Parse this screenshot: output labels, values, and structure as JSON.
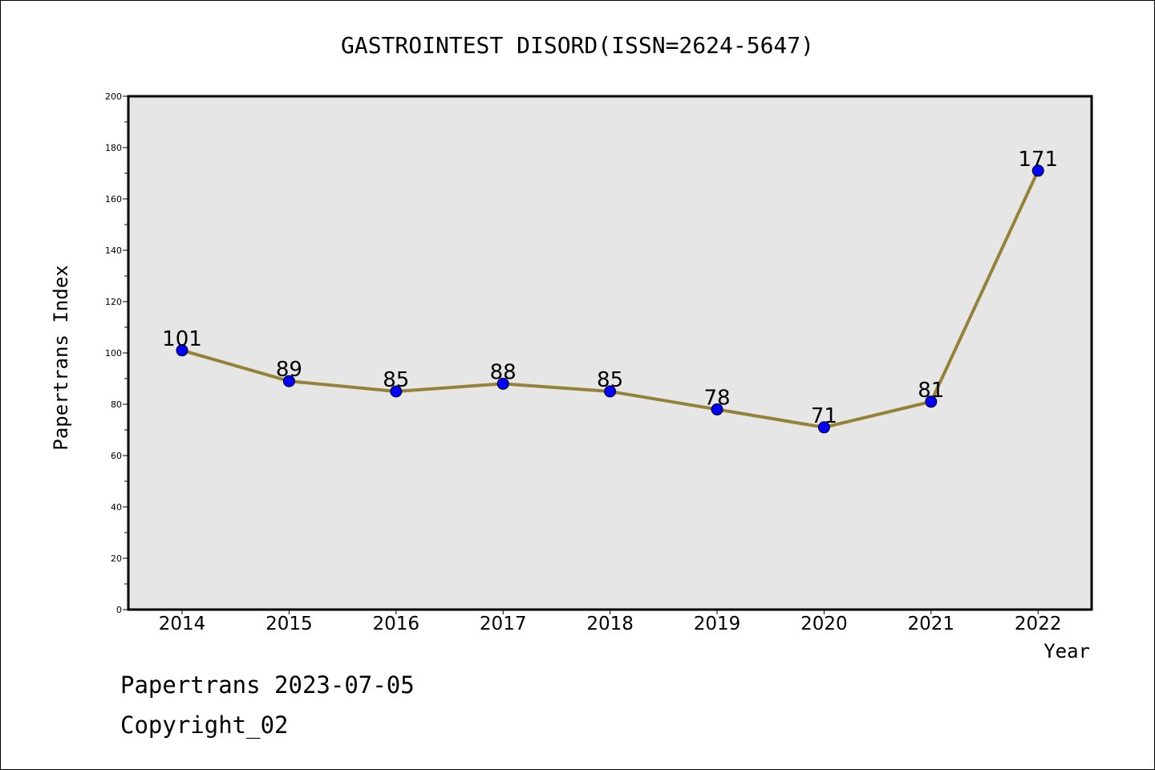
{
  "chart_data": {
    "type": "line",
    "title": "GASTROINTEST DISORD(ISSN=2624-5647)",
    "xlabel": "Year",
    "ylabel": "Papertrans Index",
    "x": [
      "2014",
      "2015",
      "2016",
      "2017",
      "2018",
      "2019",
      "2020",
      "2021",
      "2022"
    ],
    "series": [
      {
        "values": [
          101,
          89,
          85,
          88,
          85,
          78,
          71,
          81,
          171
        ]
      }
    ],
    "ylim": [
      0,
      200
    ],
    "yticks": [
      0,
      20,
      40,
      60,
      80,
      100,
      120,
      140,
      160,
      180,
      200
    ],
    "grid": false,
    "colors": {
      "line": "#948238",
      "marker": "#0000ff",
      "plot_bg": "#e6e6e6"
    }
  },
  "footer": {
    "line1": "Papertrans 2023-07-05",
    "line2": "Copyright_02"
  }
}
